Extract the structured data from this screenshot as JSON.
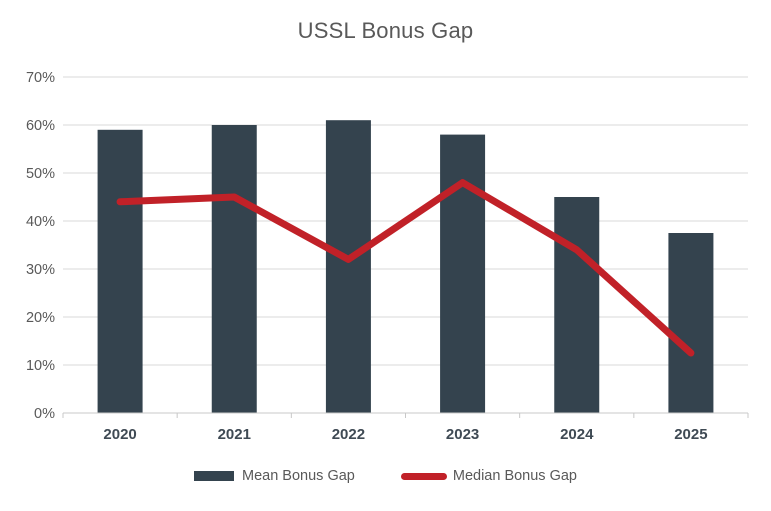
{
  "chart_data": {
    "type": "bar",
    "title": "USSL Bonus Gap",
    "categories": [
      "2020",
      "2021",
      "2022",
      "2023",
      "2024",
      "2025"
    ],
    "series": [
      {
        "name": "Mean Bonus Gap",
        "type": "bar",
        "color": "#34434E",
        "values": [
          59,
          60,
          61,
          58,
          45,
          37.5
        ]
      },
      {
        "name": "Median Bonus Gap",
        "type": "line",
        "color": "#C12128",
        "values": [
          44,
          45,
          32,
          48,
          34,
          12.5
        ]
      }
    ],
    "xlabel": "",
    "ylabel": "",
    "ylim": [
      0,
      70
    ],
    "y_tick_step": 10,
    "y_ticks": [
      "0%",
      "10%",
      "20%",
      "30%",
      "40%",
      "50%",
      "60%",
      "70%"
    ],
    "grid": true,
    "gridline_color": "#D9D9D9",
    "axis_line_color": "#C8C8C8",
    "background_color": "#FFFFFF",
    "title_color": "#595959",
    "tick_label_color": "#595959",
    "category_label_color": "#3F4A54",
    "legend_position": "bottom"
  }
}
